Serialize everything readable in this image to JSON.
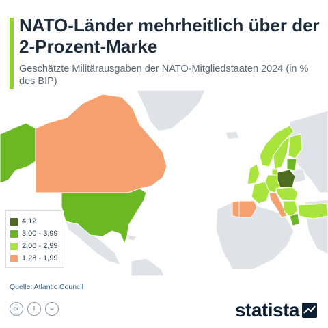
{
  "header": {
    "title": "NATO-Länder mehrheitlich über der 2-Prozent-Marke",
    "subtitle": "Geschätzte Militärausgaben der NATO-Mitgliedstaaten 2024 (in % des BIP)"
  },
  "colors": {
    "accent": "#8fd42a",
    "ocean": "#ffffff",
    "non_member": "#dfe3e8",
    "cat_top": "#4d6b1f",
    "cat_high": "#6cb824",
    "cat_mid": "#a8e43c",
    "cat_low": "#f5a06e"
  },
  "legend": {
    "items": [
      {
        "label": "4,12",
        "color": "#4d6b1f"
      },
      {
        "label": "3,00 - 3,99",
        "color": "#6cb824"
      },
      {
        "label": "2,00 - 2,99",
        "color": "#a8e43c"
      },
      {
        "label": "1,28 - 1,99",
        "color": "#f5a06e"
      }
    ]
  },
  "footer": {
    "source": "Quelle: Atlantic Council",
    "logo": "statista",
    "license_icons": [
      "cc-icon",
      "by-icon",
      "nd-icon"
    ]
  }
}
